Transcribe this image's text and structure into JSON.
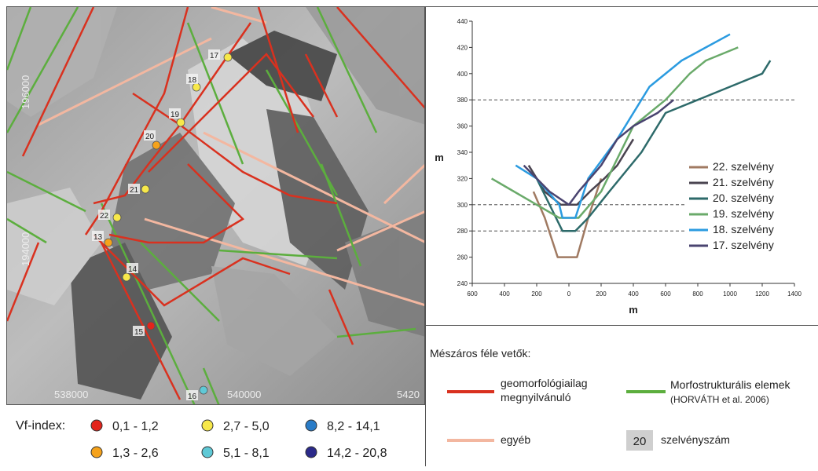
{
  "map": {
    "x_ticks": [
      "538000",
      "540000",
      "5420"
    ],
    "y_ticks": [
      "196000",
      "194000"
    ],
    "points": [
      {
        "label": "17",
        "cls": "c3"
      },
      {
        "label": "18",
        "cls": "c3"
      },
      {
        "label": "19",
        "cls": "c3"
      },
      {
        "label": "20",
        "cls": "c2"
      },
      {
        "label": "21",
        "cls": "c3"
      },
      {
        "label": "22",
        "cls": "c3"
      },
      {
        "label": "13",
        "cls": "c2"
      },
      {
        "label": "14",
        "cls": "c3"
      },
      {
        "label": "15",
        "cls": "c1"
      },
      {
        "label": "16",
        "cls": "c4"
      }
    ]
  },
  "vf_legend": {
    "title": "Vf-index:",
    "classes": [
      {
        "key": "c1",
        "range": "0,1 - 1,2",
        "color": "#e3241b"
      },
      {
        "key": "c2",
        "range": "1,3 - 2,6",
        "color": "#f5a21b"
      },
      {
        "key": "c3",
        "range": "2,7 - 5,0",
        "color": "#f7e84a"
      },
      {
        "key": "c4",
        "range": "5,1 - 8,1",
        "color": "#5fc9d6"
      },
      {
        "key": "c5",
        "range": "8,2 - 14,1",
        "color": "#2a7cc7"
      },
      {
        "key": "c6",
        "range": "14,2 - 20,8",
        "color": "#2b2a8a"
      }
    ]
  },
  "faults_legend": {
    "title": "Mészáros féle vetők:",
    "geomorph_line1": "geomorfológiailag",
    "geomorph_line2": "megnyilvánuló",
    "geomorph_color": "#d9311f",
    "morpho_line1": "Morfostrukturális elemek",
    "morpho_line2": "(HORVÁTH et al. 2006)",
    "morpho_color": "#5cae3e",
    "other": "egyéb",
    "other_color": "#f3b7a0",
    "section_box": "20",
    "section_label": "szelvényszám"
  },
  "chart_data": {
    "type": "line",
    "title": "",
    "xlabel": "m",
    "ylabel": "m",
    "xlim": [
      -600,
      1400
    ],
    "ylim": [
      240,
      440
    ],
    "x_ticks": [
      -600,
      -400,
      -200,
      0,
      200,
      400,
      600,
      800,
      1000,
      1200,
      1400
    ],
    "x_tick_labels": [
      "600",
      "400",
      "200",
      "0",
      "200",
      "400",
      "600",
      "800",
      "1000",
      "1200",
      "1400"
    ],
    "y_ticks": [
      240,
      260,
      280,
      300,
      320,
      340,
      360,
      380,
      400,
      420,
      440
    ],
    "y_tick_labels": [
      "240",
      "260",
      "280",
      "300",
      "320",
      "340",
      "360",
      "380",
      "400",
      "420",
      "440"
    ],
    "dashed_levels": [
      280,
      300,
      380
    ],
    "legend_position": "right",
    "series": [
      {
        "name": "22. szelvény",
        "color": "#a07a62",
        "points": [
          [
            -220,
            310
          ],
          [
            -150,
            290
          ],
          [
            -70,
            260
          ],
          [
            50,
            260
          ],
          [
            120,
            290
          ],
          [
            200,
            320
          ]
        ]
      },
      {
        "name": "21. szelvény",
        "color": "#4a4450",
        "points": [
          [
            -250,
            330
          ],
          [
            -150,
            310
          ],
          [
            -50,
            300
          ],
          [
            50,
            300
          ],
          [
            130,
            310
          ],
          [
            220,
            320
          ],
          [
            300,
            330
          ],
          [
            400,
            350
          ]
        ]
      },
      {
        "name": "20. szelvény",
        "color": "#2d6a6a",
        "points": [
          [
            -200,
            320
          ],
          [
            -80,
            290
          ],
          [
            -40,
            280
          ],
          [
            40,
            280
          ],
          [
            120,
            290
          ],
          [
            250,
            310
          ],
          [
            450,
            340
          ],
          [
            600,
            370
          ],
          [
            800,
            380
          ],
          [
            1000,
            390
          ],
          [
            1200,
            400
          ],
          [
            1250,
            410
          ]
        ]
      },
      {
        "name": "19. szelvény",
        "color": "#6aaa6a",
        "points": [
          [
            -480,
            320
          ],
          [
            -200,
            300
          ],
          [
            -60,
            290
          ],
          [
            60,
            290
          ],
          [
            200,
            310
          ],
          [
            400,
            360
          ],
          [
            600,
            380
          ],
          [
            750,
            400
          ],
          [
            850,
            410
          ],
          [
            1050,
            420
          ]
        ]
      },
      {
        "name": "18. szelvény",
        "color": "#2b9be0",
        "points": [
          [
            -330,
            330
          ],
          [
            -200,
            320
          ],
          [
            -60,
            300
          ],
          [
            -40,
            290
          ],
          [
            40,
            290
          ],
          [
            120,
            320
          ],
          [
            300,
            350
          ],
          [
            500,
            390
          ],
          [
            700,
            410
          ],
          [
            850,
            420
          ],
          [
            1000,
            430
          ]
        ]
      },
      {
        "name": "17. szelvény",
        "color": "#4a4470",
        "points": [
          [
            -280,
            330
          ],
          [
            -200,
            320
          ],
          [
            -120,
            310
          ],
          [
            0,
            300
          ],
          [
            60,
            310
          ],
          [
            200,
            330
          ],
          [
            300,
            350
          ],
          [
            400,
            360
          ],
          [
            550,
            370
          ],
          [
            650,
            380
          ]
        ]
      }
    ]
  }
}
